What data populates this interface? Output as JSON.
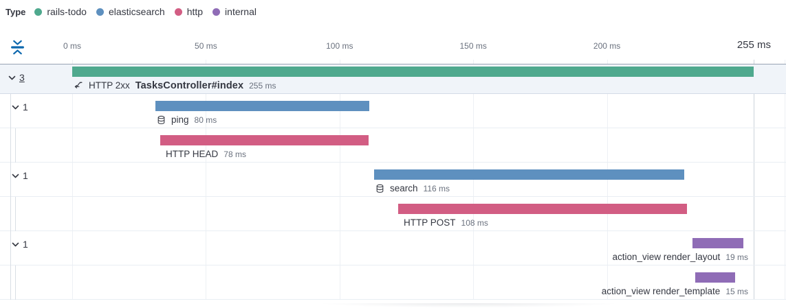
{
  "legend": {
    "title": "Type",
    "items": [
      {
        "label": "rails-todo",
        "color": "#4FA98E"
      },
      {
        "label": "elasticsearch",
        "color": "#5E90BF"
      },
      {
        "label": "http",
        "color": "#D25D83"
      },
      {
        "label": "internal",
        "color": "#8F6CB6"
      }
    ]
  },
  "axis": {
    "ticks": [
      {
        "label": "0 ms",
        "ms": 0
      },
      {
        "label": "50 ms",
        "ms": 50
      },
      {
        "label": "100 ms",
        "ms": 100
      },
      {
        "label": "150 ms",
        "ms": 150
      },
      {
        "label": "200 ms",
        "ms": 200
      },
      {
        "label": "255 ms",
        "ms": 255,
        "emphasis": true
      }
    ]
  },
  "chart_data": {
    "type": "waterfall",
    "unit": "ms",
    "xlim": [
      0,
      255
    ],
    "rows": [
      {
        "kind": "transaction",
        "toggle": "3",
        "icon": "transaction-icon",
        "prefix": "HTTP 2xx",
        "name": "TasksController#index",
        "start_ms": 0,
        "duration_ms": 255,
        "duration_label": "255 ms",
        "color": "#4FA98E",
        "selected": true,
        "level": 0
      },
      {
        "kind": "span",
        "toggle": "1",
        "icon": "database-icon",
        "name": "ping",
        "start_ms": 31,
        "duration_ms": 80,
        "duration_label": "80 ms",
        "color": "#5E90BF",
        "level": 1
      },
      {
        "kind": "span",
        "name": "HTTP HEAD",
        "start_ms": 33,
        "duration_ms": 78,
        "duration_label": "78 ms",
        "color": "#D25D83",
        "level": 2
      },
      {
        "kind": "span",
        "toggle": "1",
        "icon": "database-icon",
        "name": "search",
        "start_ms": 113,
        "duration_ms": 116,
        "duration_label": "116 ms",
        "color": "#5E90BF",
        "level": 1
      },
      {
        "kind": "span",
        "name": "HTTP POST",
        "start_ms": 122,
        "duration_ms": 108,
        "duration_label": "108 ms",
        "color": "#D25D83",
        "level": 2
      },
      {
        "kind": "span",
        "toggle": "1",
        "name": "action_view render_layout",
        "start_ms": 232,
        "duration_ms": 19,
        "duration_label": "19 ms",
        "color": "#8F6CB6",
        "level": 1,
        "label_align": "right"
      },
      {
        "kind": "span",
        "name": "action_view render_template",
        "start_ms": 233,
        "duration_ms": 15,
        "duration_label": "15 ms",
        "color": "#8F6CB6",
        "level": 2,
        "label_align": "right"
      }
    ]
  }
}
